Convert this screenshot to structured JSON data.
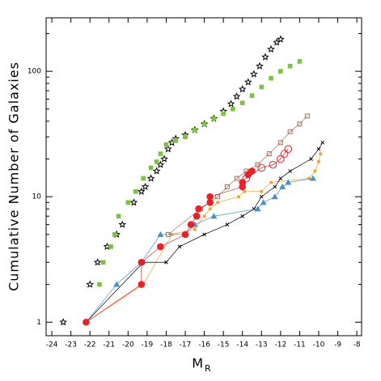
{
  "chart_data": {
    "type": "scatter",
    "ylabel": "Cumulative Number of Galaxies",
    "xlabel": "M",
    "xlabel_subscript": "R",
    "xlim": [
      -24.3,
      -7.75
    ],
    "xticks": [
      -24,
      -23,
      -22,
      -21,
      -20,
      -19,
      -18,
      -17,
      -16,
      -15,
      -14,
      -13,
      -12,
      -11,
      -10,
      -9,
      -8
    ],
    "ylim": [
      0.78,
      267
    ],
    "log_y": true,
    "yticks": [
      1,
      10,
      100
    ],
    "yminor": [
      2,
      3,
      4,
      5,
      6,
      7,
      8,
      9,
      20,
      30,
      40,
      50,
      60,
      70,
      80,
      90,
      200
    ],
    "series": [
      {
        "marker": "star",
        "color": "#000000",
        "line": false,
        "x": [
          -23.4,
          -22.0,
          -21.6,
          -21.1,
          -20.6,
          -20.3,
          -19.7,
          -19.3,
          -19.1,
          -18.8,
          -18.5,
          -18.3,
          -18.1,
          -17.9,
          -17.7,
          -17.5,
          -17.0,
          -16.5,
          -16.0,
          -15.5,
          -15.0,
          -14.6,
          -14.3,
          -14.0,
          -13.7,
          -13.4,
          -13.1,
          -12.8,
          -12.5,
          -12.2,
          -12.0
        ],
        "values": [
          1,
          2,
          3,
          4,
          5,
          6,
          9,
          11,
          12,
          14,
          16,
          18,
          20,
          24,
          27,
          29,
          31,
          34,
          38,
          42,
          48,
          55,
          63,
          72,
          82,
          95,
          110,
          130,
          150,
          170,
          180
        ]
      },
      {
        "marker": "square",
        "color": "#7cc242",
        "line": false,
        "x": [
          -22.2,
          -21.5,
          -21.3,
          -20.9,
          -20.7,
          -20.5,
          -20.0,
          -19.6,
          -19.2,
          -18.8,
          -18.5,
          -18.3,
          -18.0,
          -17.5,
          -17.0,
          -16.5,
          -16.0,
          -15.5,
          -15.0,
          -14.5,
          -14.0,
          -13.5,
          -13.0,
          -12.5,
          -12.0,
          -11.5,
          -11.0
        ],
        "values": [
          1,
          2,
          3,
          4,
          5,
          7,
          9,
          11,
          14,
          17,
          19,
          22,
          26,
          28,
          30,
          34,
          38,
          42,
          46,
          50,
          56,
          64,
          75,
          88,
          100,
          110,
          120
        ]
      },
      {
        "marker": "open-square",
        "color": "#a0705a",
        "line": true,
        "x": [
          -17.9,
          -16.2,
          -15.3,
          -14.8,
          -14.3,
          -13.8,
          -13.2,
          -12.6,
          -12.0,
          -11.5,
          -11.0,
          -10.6
        ],
        "values": [
          5,
          8,
          10,
          12,
          14,
          16,
          18,
          22,
          27,
          33,
          38,
          44
        ]
      },
      {
        "marker": "square-small",
        "color": "#f4a030",
        "line": true,
        "x": [
          -22.2,
          -19.2,
          -17.7,
          -16.5,
          -16.0,
          -15.7,
          -15.3,
          -14.2,
          -13.9,
          -13.0,
          -12.5,
          -10.5,
          -10.2,
          -10.0,
          -9.9
        ],
        "values": [
          1,
          2,
          5,
          5.5,
          7,
          8,
          9,
          10,
          11,
          11,
          13,
          14,
          16,
          19,
          22
        ]
      },
      {
        "marker": "x",
        "color": "#000000",
        "line": true,
        "x": [
          -22.2,
          -19.2,
          -18.0,
          -17.3,
          -16.0,
          -14.8,
          -14.0,
          -13.4,
          -13.0,
          -12.3,
          -12.0,
          -11.5,
          -10.4,
          -10.0,
          -9.8
        ],
        "values": [
          1,
          3,
          3,
          4,
          5,
          6,
          7,
          8,
          10,
          12,
          14,
          16,
          20,
          24,
          27
        ]
      },
      {
        "marker": "triangle",
        "color": "#4a90c8",
        "line": true,
        "x": [
          -22.2,
          -20.6,
          -19.3,
          -18.3,
          -17.0,
          -16.5,
          -15.5,
          -13.2,
          -12.9,
          -12.3,
          -11.9,
          -11.6,
          -10.3
        ],
        "values": [
          1,
          2,
          3,
          5,
          5,
          6,
          7,
          8,
          9,
          10,
          12,
          13,
          14
        ]
      },
      {
        "marker": "circle",
        "color": "#e8202a",
        "line": true,
        "x": [
          -22.2,
          -19.3,
          -19.3,
          -18.3,
          -17.0,
          -16.7,
          -16.4,
          -16.3,
          -15.7,
          -15.7,
          -14.0,
          -14.0,
          -13.7,
          -13.5
        ],
        "values": [
          1,
          2,
          3,
          4,
          5,
          6,
          7,
          8,
          9,
          10,
          12,
          13,
          15,
          16
        ]
      },
      {
        "marker": "open-circle",
        "color": "#e8202a",
        "line": true,
        "x": [
          -13.8,
          -13.0,
          -12.4,
          -12.0,
          -11.8,
          -11.6
        ],
        "values": [
          14,
          17,
          18,
          20,
          22,
          24
        ]
      }
    ]
  }
}
